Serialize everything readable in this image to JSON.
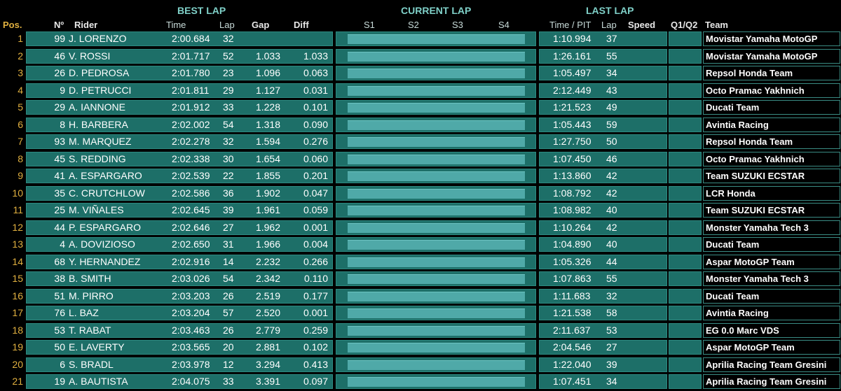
{
  "headers": {
    "best_lap": "BEST LAP",
    "current_lap": "CURRENT LAP",
    "last_lap": "LAST LAP",
    "pos": "Pos.",
    "num": "Nº",
    "rider": "Rider",
    "time": "Time",
    "lap": "Lap",
    "gap": "Gap",
    "diff": "Diff",
    "s1": "S1",
    "s2": "S2",
    "s3": "S3",
    "s4": "S4",
    "time_pit": "Time / PIT",
    "last_lap_col": "Lap",
    "speed": "Speed",
    "q1q2": "Q1/Q2",
    "team": "Team"
  },
  "rows": [
    {
      "pos": "1",
      "num": "99",
      "rider": "J. LORENZO",
      "time": "2:00.684",
      "lap": "32",
      "gap": "",
      "diff": "",
      "last_time": "1:10.994",
      "last_lap": "37",
      "team": "Movistar Yamaha MotoGP"
    },
    {
      "pos": "2",
      "num": "46",
      "rider": "V. ROSSI",
      "time": "2:01.717",
      "lap": "52",
      "gap": "1.033",
      "diff": "1.033",
      "last_time": "1:26.161",
      "last_lap": "55",
      "team": "Movistar Yamaha MotoGP"
    },
    {
      "pos": "3",
      "num": "26",
      "rider": "D. PEDROSA",
      "time": "2:01.780",
      "lap": "23",
      "gap": "1.096",
      "diff": "0.063",
      "last_time": "1:05.497",
      "last_lap": "34",
      "team": "Repsol Honda Team"
    },
    {
      "pos": "4",
      "num": "9",
      "rider": "D. PETRUCCI",
      "time": "2:01.811",
      "lap": "29",
      "gap": "1.127",
      "diff": "0.031",
      "last_time": "2:12.449",
      "last_lap": "43",
      "team": "Octo Pramac Yakhnich"
    },
    {
      "pos": "5",
      "num": "29",
      "rider": "A. IANNONE",
      "time": "2:01.912",
      "lap": "33",
      "gap": "1.228",
      "diff": "0.101",
      "last_time": "1:21.523",
      "last_lap": "49",
      "team": "Ducati Team"
    },
    {
      "pos": "6",
      "num": "8",
      "rider": "H. BARBERA",
      "time": "2:02.002",
      "lap": "54",
      "gap": "1.318",
      "diff": "0.090",
      "last_time": "1:05.443",
      "last_lap": "59",
      "team": "Avintia Racing"
    },
    {
      "pos": "7",
      "num": "93",
      "rider": "M. MARQUEZ",
      "time": "2:02.278",
      "lap": "32",
      "gap": "1.594",
      "diff": "0.276",
      "last_time": "1:27.750",
      "last_lap": "50",
      "team": "Repsol Honda Team"
    },
    {
      "pos": "8",
      "num": "45",
      "rider": "S. REDDING",
      "time": "2:02.338",
      "lap": "30",
      "gap": "1.654",
      "diff": "0.060",
      "last_time": "1:07.450",
      "last_lap": "46",
      "team": "Octo Pramac Yakhnich"
    },
    {
      "pos": "9",
      "num": "41",
      "rider": "A. ESPARGARO",
      "time": "2:02.539",
      "lap": "22",
      "gap": "1.855",
      "diff": "0.201",
      "last_time": "1:13.860",
      "last_lap": "42",
      "team": "Team SUZUKI ECSTAR"
    },
    {
      "pos": "10",
      "num": "35",
      "rider": "C. CRUTCHLOW",
      "time": "2:02.586",
      "lap": "36",
      "gap": "1.902",
      "diff": "0.047",
      "last_time": "1:08.792",
      "last_lap": "42",
      "team": "LCR Honda"
    },
    {
      "pos": "11",
      "num": "25",
      "rider": "M. VIÑALES",
      "time": "2:02.645",
      "lap": "39",
      "gap": "1.961",
      "diff": "0.059",
      "last_time": "1:08.982",
      "last_lap": "40",
      "team": "Team SUZUKI ECSTAR"
    },
    {
      "pos": "12",
      "num": "44",
      "rider": "P. ESPARGARO",
      "time": "2:02.646",
      "lap": "27",
      "gap": "1.962",
      "diff": "0.001",
      "last_time": "1:10.264",
      "last_lap": "42",
      "team": "Monster Yamaha Tech 3"
    },
    {
      "pos": "13",
      "num": "4",
      "rider": "A. DOVIZIOSO",
      "time": "2:02.650",
      "lap": "31",
      "gap": "1.966",
      "diff": "0.004",
      "last_time": "1:04.890",
      "last_lap": "40",
      "team": "Ducati Team"
    },
    {
      "pos": "14",
      "num": "68",
      "rider": "Y. HERNANDEZ",
      "time": "2:02.916",
      "lap": "14",
      "gap": "2.232",
      "diff": "0.266",
      "last_time": "1:05.326",
      "last_lap": "44",
      "team": "Aspar MotoGP Team"
    },
    {
      "pos": "15",
      "num": "38",
      "rider": "B. SMITH",
      "time": "2:03.026",
      "lap": "54",
      "gap": "2.342",
      "diff": "0.110",
      "last_time": "1:07.863",
      "last_lap": "55",
      "team": "Monster Yamaha Tech 3"
    },
    {
      "pos": "16",
      "num": "51",
      "rider": "M. PIRRO",
      "time": "2:03.203",
      "lap": "26",
      "gap": "2.519",
      "diff": "0.177",
      "last_time": "1:11.683",
      "last_lap": "32",
      "team": "Ducati Team"
    },
    {
      "pos": "17",
      "num": "76",
      "rider": "L. BAZ",
      "time": "2:03.204",
      "lap": "57",
      "gap": "2.520",
      "diff": "0.001",
      "last_time": "1:21.538",
      "last_lap": "58",
      "team": "Avintia Racing"
    },
    {
      "pos": "18",
      "num": "53",
      "rider": "T. RABAT",
      "time": "2:03.463",
      "lap": "26",
      "gap": "2.779",
      "diff": "0.259",
      "last_time": "2:11.637",
      "last_lap": "53",
      "team": "EG 0.0 Marc VDS"
    },
    {
      "pos": "19",
      "num": "50",
      "rider": "E. LAVERTY",
      "time": "2:03.565",
      "lap": "20",
      "gap": "2.881",
      "diff": "0.102",
      "last_time": "2:04.546",
      "last_lap": "27",
      "team": "Aspar MotoGP Team"
    },
    {
      "pos": "20",
      "num": "6",
      "rider": "S. BRADL",
      "time": "2:03.978",
      "lap": "12",
      "gap": "3.294",
      "diff": "0.413",
      "last_time": "1:22.040",
      "last_lap": "39",
      "team": "Aprilia Racing Team Gresini"
    },
    {
      "pos": "21",
      "num": "19",
      "rider": "A. BAUTISTA",
      "time": "2:04.075",
      "lap": "33",
      "gap": "3.391",
      "diff": "0.097",
      "last_time": "1:07.451",
      "last_lap": "34",
      "team": "Aprilia Racing Team Gresini"
    }
  ]
}
